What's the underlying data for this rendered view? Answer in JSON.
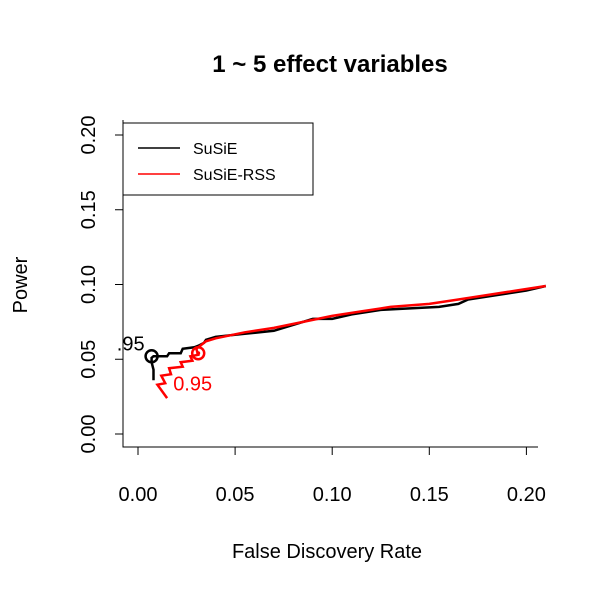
{
  "chart_data": {
    "type": "line",
    "title": "1 ~ 5 effect variables",
    "xlabel": "False Discovery Rate",
    "ylabel": "Power",
    "xlim": [
      0.0,
      0.21
    ],
    "ylim": [
      0.0,
      0.2
    ],
    "x_ticks": [
      "0.00",
      "0.05",
      "0.10",
      "0.15",
      "0.20"
    ],
    "y_ticks": [
      "0.00",
      "0.05",
      "0.10",
      "0.15",
      "0.20"
    ],
    "grid": false,
    "legend_position": "top-left",
    "series": [
      {
        "name": "SuSiE",
        "color": "#000000",
        "x": [
          0.008,
          0.008,
          0.007,
          0.007,
          0.008,
          0.015,
          0.016,
          0.022,
          0.023,
          0.029,
          0.031,
          0.034,
          0.035,
          0.04,
          0.055,
          0.07,
          0.09,
          0.1,
          0.11,
          0.125,
          0.14,
          0.155,
          0.165,
          0.17,
          0.185,
          0.2,
          0.21
        ],
        "y": [
          0.036,
          0.043,
          0.048,
          0.051,
          0.052,
          0.052,
          0.054,
          0.054,
          0.057,
          0.058,
          0.059,
          0.061,
          0.063,
          0.065,
          0.067,
          0.069,
          0.077,
          0.077,
          0.08,
          0.083,
          0.084,
          0.085,
          0.087,
          0.09,
          0.093,
          0.096,
          0.099
        ]
      },
      {
        "name": "SuSiE-RSS",
        "color": "#ff0000",
        "x": [
          0.015,
          0.01,
          0.014,
          0.012,
          0.017,
          0.016,
          0.023,
          0.022,
          0.028,
          0.027,
          0.031,
          0.03,
          0.035,
          0.04,
          0.055,
          0.07,
          0.085,
          0.1,
          0.115,
          0.13,
          0.15,
          0.165,
          0.18,
          0.195,
          0.21
        ],
        "y": [
          0.024,
          0.033,
          0.034,
          0.039,
          0.04,
          0.044,
          0.045,
          0.048,
          0.049,
          0.052,
          0.053,
          0.057,
          0.062,
          0.064,
          0.068,
          0.071,
          0.075,
          0.079,
          0.082,
          0.085,
          0.087,
          0.09,
          0.093,
          0.096,
          0.099
        ]
      }
    ],
    "annotations": [
      {
        "series": 0,
        "label": ".95",
        "x": 0.007,
        "y": 0.052,
        "color": "#000000"
      },
      {
        "series": 1,
        "label": "0.95",
        "x": 0.031,
        "y": 0.054,
        "color": "#ff0000"
      }
    ]
  }
}
